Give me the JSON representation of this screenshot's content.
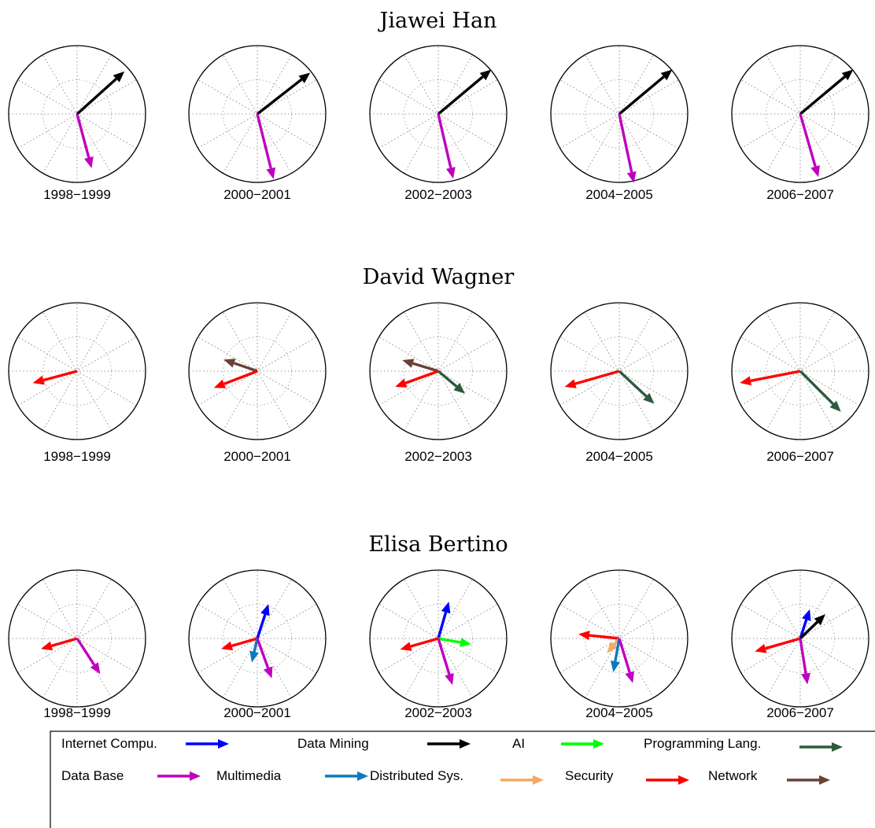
{
  "chart_data": {
    "type": "compass",
    "periods": [
      "1998−1999",
      "2000−2001",
      "2002−2003",
      "2004−2005",
      "2006−2007"
    ],
    "series": [
      {
        "name": "Internet Compu.",
        "color": "#0000ff"
      },
      {
        "name": "Data Mining",
        "color": "#000000"
      },
      {
        "name": "AI",
        "color": "#00ff00"
      },
      {
        "name": "Programming Lang.",
        "color": "#2d5a3d"
      },
      {
        "name": "Data Base",
        "color": "#bf00bf"
      },
      {
        "name": "Multimedia",
        "color": "#0a7bbf"
      },
      {
        "name": "Distributed Sys.",
        "color": "#f5a860"
      },
      {
        "name": "Security",
        "color": "#ff0000"
      },
      {
        "name": "Network",
        "color": "#6b4036"
      }
    ],
    "panels": [
      {
        "title": "Jiawei Han",
        "subplots": [
          {
            "period": "1998−1999",
            "vectors": [
              {
                "series": "Data Mining",
                "angle": 42,
                "magnitude": 0.93
              },
              {
                "series": "Data Base",
                "angle": -75,
                "magnitude": 0.82
              }
            ]
          },
          {
            "period": "2000−2001",
            "vectors": [
              {
                "series": "Data Mining",
                "angle": 38,
                "magnitude": 0.98
              },
              {
                "series": "Data Base",
                "angle": -76,
                "magnitude": 0.98
              }
            ]
          },
          {
            "period": "2002−2003",
            "vectors": [
              {
                "series": "Data Mining",
                "angle": 40,
                "magnitude": 1.01
              },
              {
                "series": "Data Base",
                "angle": -77,
                "magnitude": 0.97
              }
            ]
          },
          {
            "period": "2004−2005",
            "vectors": [
              {
                "series": "Data Mining",
                "angle": 40,
                "magnitude": 1.01
              },
              {
                "series": "Data Base",
                "angle": -78,
                "magnitude": 1.03
              }
            ]
          },
          {
            "period": "2006−2007",
            "vectors": [
              {
                "series": "Data Mining",
                "angle": 40,
                "magnitude": 1.01
              },
              {
                "series": "Data Base",
                "angle": -74,
                "magnitude": 0.96
              }
            ]
          }
        ]
      },
      {
        "title": "David Wagner",
        "subplots": [
          {
            "period": "1998−1999",
            "vectors": [
              {
                "series": "Security",
                "angle": 195,
                "magnitude": 0.67
              }
            ]
          },
          {
            "period": "2000−2001",
            "vectors": [
              {
                "series": "Network",
                "angle": 161,
                "magnitude": 0.52
              },
              {
                "series": "Security",
                "angle": 201,
                "magnitude": 0.68
              }
            ]
          },
          {
            "period": "2002−2003",
            "vectors": [
              {
                "series": "Network",
                "angle": 163,
                "magnitude": 0.55
              },
              {
                "series": "Security",
                "angle": 200,
                "magnitude": 0.67
              },
              {
                "series": "Programming Lang.",
                "angle": -40,
                "magnitude": 0.51
              }
            ]
          },
          {
            "period": "2004−2005",
            "vectors": [
              {
                "series": "Security",
                "angle": 196,
                "magnitude": 0.83
              },
              {
                "series": "Programming Lang.",
                "angle": -43,
                "magnitude": 0.7
              }
            ]
          },
          {
            "period": "2006−2007",
            "vectors": [
              {
                "series": "Security",
                "angle": 191,
                "magnitude": 0.9
              },
              {
                "series": "Programming Lang.",
                "angle": -45,
                "magnitude": 0.84
              }
            ]
          }
        ]
      },
      {
        "title": "Elisa Bertino",
        "subplots": [
          {
            "period": "1998−1999",
            "vectors": [
              {
                "series": "Security",
                "angle": 196,
                "magnitude": 0.55
              },
              {
                "series": "Data Base",
                "angle": -57,
                "magnitude": 0.62
              }
            ]
          },
          {
            "period": "2000−2001",
            "vectors": [
              {
                "series": "Internet Compu.",
                "angle": 72,
                "magnitude": 0.53
              },
              {
                "series": "Security",
                "angle": 196,
                "magnitude": 0.55
              },
              {
                "series": "Multimedia",
                "angle": -103,
                "magnitude": 0.36
              },
              {
                "series": "Data Base",
                "angle": -70,
                "magnitude": 0.62
              }
            ]
          },
          {
            "period": "2002−2003",
            "vectors": [
              {
                "series": "Internet Compu.",
                "angle": 74,
                "magnitude": 0.56
              },
              {
                "series": "AI",
                "angle": -10,
                "magnitude": 0.49
              },
              {
                "series": "Security",
                "angle": 196,
                "magnitude": 0.58
              },
              {
                "series": "Data Base",
                "angle": -73,
                "magnitude": 0.71
              }
            ]
          },
          {
            "period": "2004−2005",
            "vectors": [
              {
                "series": "Security",
                "angle": 174,
                "magnitude": 0.6
              },
              {
                "series": "Distributed Sys.",
                "angle": -130,
                "magnitude": 0.28
              },
              {
                "series": "Multimedia",
                "angle": -100,
                "magnitude": 0.5
              },
              {
                "series": "Data Base",
                "angle": -73,
                "magnitude": 0.68
              }
            ]
          },
          {
            "period": "2006−2007",
            "vectors": [
              {
                "series": "Internet Compu.",
                "angle": 72,
                "magnitude": 0.45
              },
              {
                "series": "Data Mining",
                "angle": 44,
                "magnitude": 0.51
              },
              {
                "series": "Security",
                "angle": 196,
                "magnitude": 0.69
              },
              {
                "series": "Data Base",
                "angle": -81,
                "magnitude": 0.68
              }
            ]
          }
        ]
      }
    ],
    "legend": {
      "rows": [
        [
          "Internet Compu.",
          "Data Mining",
          "AI",
          "Programming Lang."
        ],
        [
          "Data Base",
          "Multimedia",
          "Distributed Sys.",
          "Security",
          "Network"
        ]
      ]
    },
    "grid": true
  }
}
